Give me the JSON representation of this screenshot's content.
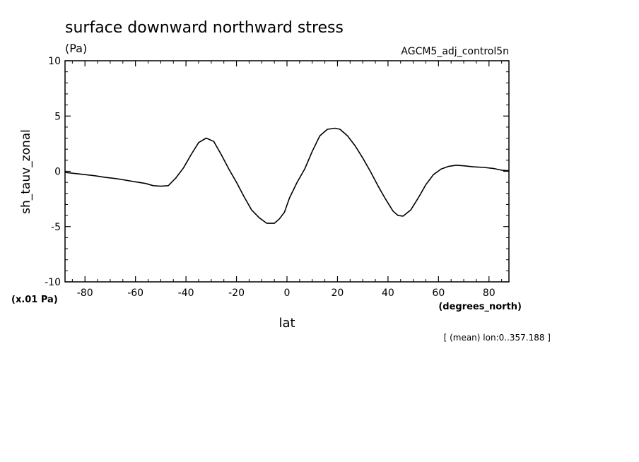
{
  "chart_data": {
    "type": "line",
    "title": "surface downward northward stress",
    "units": "(Pa)",
    "dataset": "AGCM5_adj_control5n",
    "ylabel": "sh_tauv_zonal",
    "xlabel": "lat",
    "xunits": "(degrees_north)",
    "yscale_note": "(x.01 Pa)",
    "footnote": "[ (mean) lon:0..357.188 ]",
    "xlim": [
      -87.9,
      87.9
    ],
    "ylim": [
      -10,
      10
    ],
    "xticks": [
      -80,
      -60,
      -40,
      -20,
      0,
      20,
      40,
      60,
      80
    ],
    "xtick_labels": [
      "-80",
      "-60",
      "-40",
      "-20",
      "0",
      "20",
      "40",
      "60",
      "80"
    ],
    "yticks": [
      -10,
      -5,
      0,
      5,
      10
    ],
    "ytick_labels": [
      "-10",
      "-5",
      "0",
      "5",
      "10"
    ],
    "grid": false,
    "series": [
      {
        "color": "#000000",
        "x": [
          -87.9,
          -84,
          -80,
          -76,
          -72,
          -68,
          -64,
          -60,
          -56,
          -53,
          -50,
          -47,
          -44,
          -41,
          -38,
          -35,
          -32,
          -29,
          -26,
          -23,
          -20,
          -17,
          -14,
          -11,
          -8,
          -5,
          -3,
          -1,
          1,
          4,
          7,
          10,
          13,
          16,
          19,
          21,
          24,
          27,
          30,
          33,
          36,
          39,
          42,
          44,
          46,
          49,
          52,
          55,
          58,
          61,
          64,
          67,
          70,
          74,
          78,
          82,
          85,
          87.9
        ],
        "y": [
          -0.1,
          -0.2,
          -0.3,
          -0.4,
          -0.55,
          -0.65,
          -0.8,
          -0.95,
          -1.1,
          -1.3,
          -1.35,
          -1.3,
          -0.6,
          0.3,
          1.5,
          2.6,
          3.0,
          2.7,
          1.5,
          0.2,
          -1.0,
          -2.3,
          -3.5,
          -4.2,
          -4.7,
          -4.7,
          -4.3,
          -3.7,
          -2.4,
          -1.0,
          0.2,
          1.8,
          3.2,
          3.8,
          3.9,
          3.8,
          3.2,
          2.3,
          1.2,
          0.0,
          -1.3,
          -2.5,
          -3.6,
          -4.0,
          -4.05,
          -3.5,
          -2.4,
          -1.2,
          -0.3,
          0.2,
          0.45,
          0.55,
          0.5,
          0.4,
          0.35,
          0.25,
          0.1,
          0.05
        ]
      }
    ]
  }
}
